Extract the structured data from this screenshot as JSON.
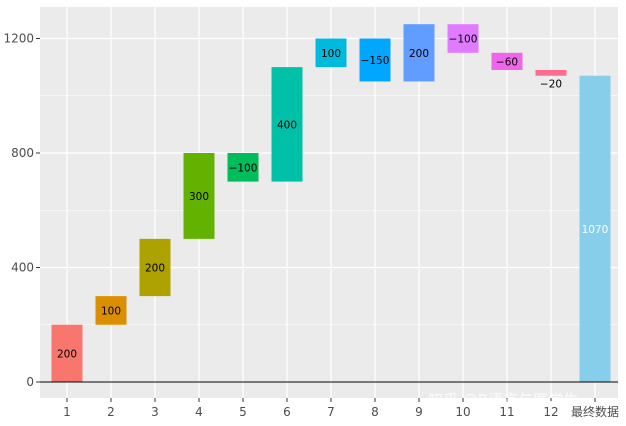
{
  "chart_data": {
    "type": "bar",
    "subtype": "waterfall",
    "categories": [
      "1",
      "2",
      "3",
      "4",
      "5",
      "6",
      "7",
      "8",
      "9",
      "10",
      "11",
      "12",
      "最终数据"
    ],
    "values": [
      200,
      100,
      200,
      300,
      -100,
      400,
      100,
      -150,
      200,
      -100,
      -60,
      -20,
      1070
    ],
    "labels": [
      "200",
      "100",
      "200",
      "300",
      "−100",
      "400",
      "100",
      "−150",
      "200",
      "−100",
      "−60",
      "−20",
      "1070"
    ],
    "total_index": 12,
    "ylim": [
      -50,
      1300
    ],
    "yticks": [
      0,
      400,
      800,
      1200
    ],
    "ytick_labels": [
      "0",
      "400",
      "800",
      "1200"
    ],
    "colors": [
      "#F8766D",
      "#DB8E00",
      "#AEA200",
      "#64B200",
      "#00BD5C",
      "#00C1A7",
      "#00BADE",
      "#00A6FF",
      "#619CFF",
      "#E07BFF",
      "#F066EA",
      "#FF6C91",
      "#87CEEB"
    ],
    "label_colors": [
      "#000000",
      "#000000",
      "#000000",
      "#000000",
      "#000000",
      "#000000",
      "#000000",
      "#000000",
      "#000000",
      "#000000",
      "#000000",
      "#000000",
      "#ffffff"
    ],
    "panel_background": "#EBEBEB",
    "grid_color": "#FFFFFF",
    "baseline_color": "#000000",
    "xlabel": "",
    "ylabel": "",
    "legend": "none",
    "grid": true
  },
  "watermark": "知乎 @R语言与医学生"
}
